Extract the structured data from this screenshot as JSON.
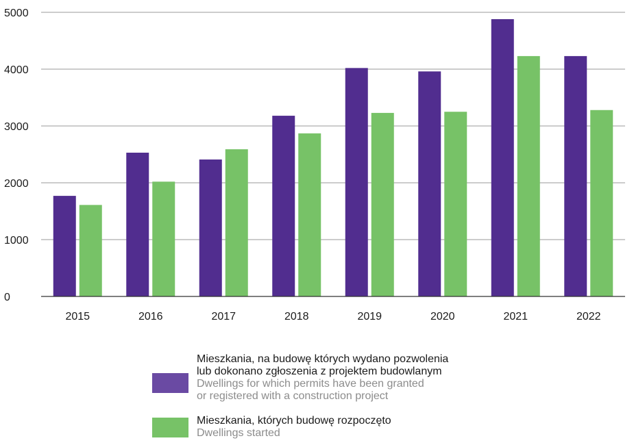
{
  "chart_data": {
    "type": "bar",
    "categories": [
      "2015",
      "2016",
      "2017",
      "2018",
      "2019",
      "2020",
      "2021",
      "2022"
    ],
    "series": [
      {
        "name": "Mieszkania, na budowę których wydano pozwolenia lub dokonano zgłoszenia z projektem budowlanym / Dwellings for which permits have been granted or registered with a construction project",
        "color": "#512d8f",
        "values": [
          1770,
          2530,
          2410,
          3180,
          4020,
          3960,
          4880,
          4230
        ]
      },
      {
        "name": "Mieszkania, których budowę rozpoczęto / Dwellings started",
        "color": "#77c267",
        "values": [
          1610,
          2020,
          2590,
          2870,
          3230,
          3250,
          4230,
          3280
        ]
      }
    ],
    "yticks": [
      0,
      1000,
      2000,
      3000,
      4000,
      5000
    ],
    "ylim": [
      0,
      5000
    ],
    "grid": true,
    "legend_position": "bottom"
  },
  "legend": [
    {
      "pl_line1": "Mieszkania, na budowę których wydano pozwolenia",
      "pl_line2": "lub dokonano zgłoszenia z projektem budowlanym",
      "en_line1": "Dwellings for which permits have been granted",
      "en_line2": "or registered with a construction project",
      "color": "#6a4aa3"
    },
    {
      "pl_line1": "Mieszkania, których budowę rozpoczęto",
      "en_line1": "Dwellings started",
      "color": "#77c267"
    }
  ]
}
